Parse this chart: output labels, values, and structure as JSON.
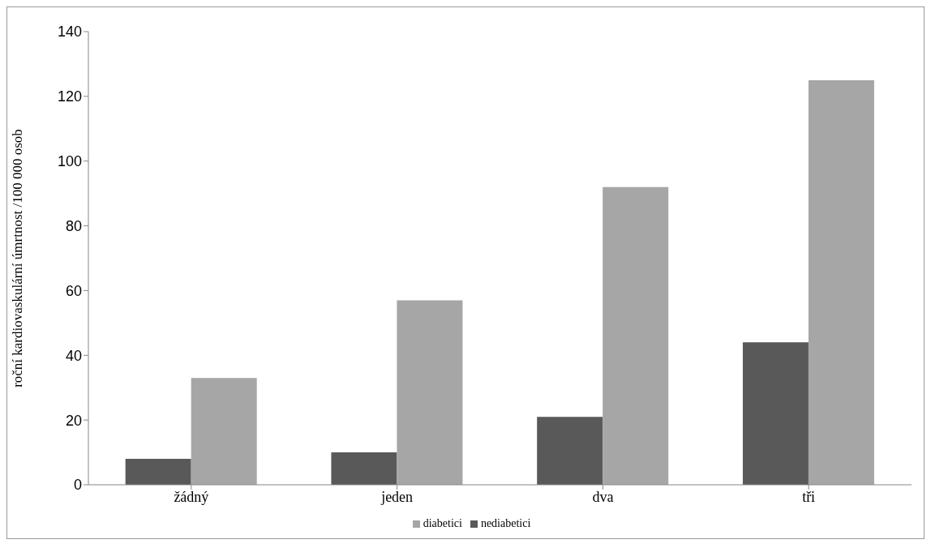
{
  "chart_data": {
    "type": "bar",
    "ylabel": "roční kardiovaskulární úmrtnost /100 000 osob",
    "categories": [
      "žádný",
      "jeden",
      "dva",
      "tři"
    ],
    "series": [
      {
        "name": "nediabetici",
        "color": "#595959",
        "values": [
          8,
          10,
          21,
          44
        ]
      },
      {
        "name": "diabetici",
        "color": "#a6a6a6",
        "values": [
          33,
          57,
          92,
          125
        ]
      }
    ],
    "ylim": [
      0,
      140
    ],
    "yticks": [
      0,
      20,
      40,
      60,
      80,
      100,
      120,
      140
    ],
    "grid": false,
    "legend": "bottom"
  }
}
